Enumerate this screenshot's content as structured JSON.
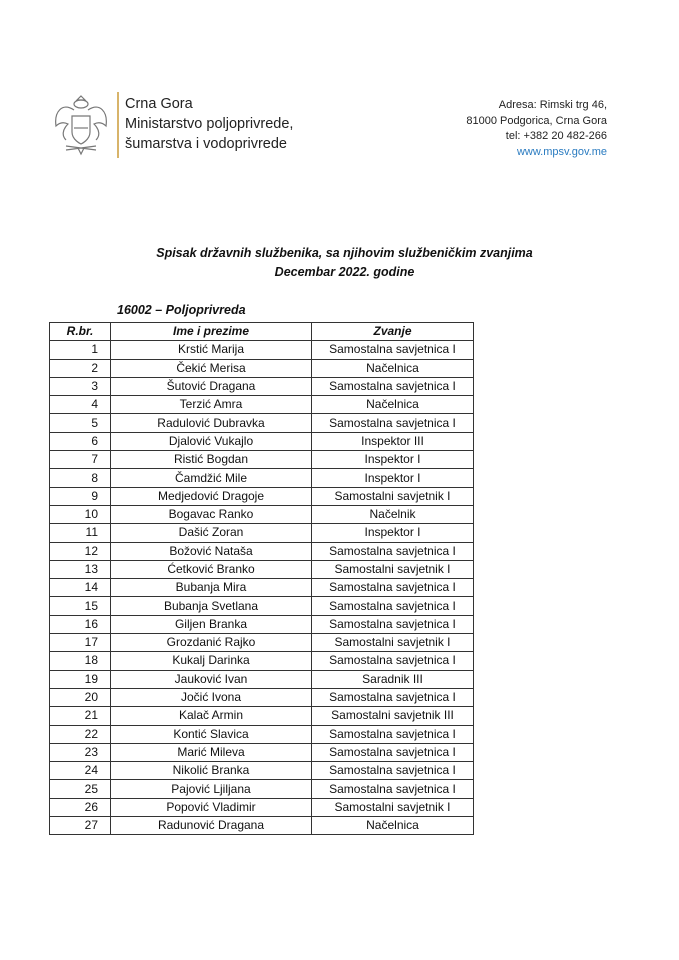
{
  "header": {
    "org_lines": [
      "Crna Gora",
      "Ministarstvo poljoprivrede,",
      "šumarstva i vodoprivrede"
    ],
    "address_lines": [
      "Adresa: Rimski trg 46,",
      "81000 Podgorica, Crna Gora",
      "tel: +382 20 482-266"
    ],
    "website": "www.mpsv.gov.me",
    "logo": "montenegro-coat-of-arms"
  },
  "title": {
    "line1": "Spisak državnih službenika, sa njihovim službeničkim zvanjima",
    "line2": "Decembar 2022. godine"
  },
  "section": "16002 – Poljoprivreda",
  "table": {
    "headers": [
      "R.br.",
      "Ime i prezime",
      "Zvanje"
    ],
    "rows": [
      [
        "1",
        "Krstić Marija",
        "Samostalna savjetnica I"
      ],
      [
        "2",
        "Čekić Merisa",
        "Načelnica"
      ],
      [
        "3",
        "Šutović Dragana",
        "Samostalna savjetnica I"
      ],
      [
        "4",
        "Terzić Amra",
        "Načelnica"
      ],
      [
        "5",
        "Radulović Dubravka",
        "Samostalna savjetnica I"
      ],
      [
        "6",
        "Djalović Vukajlo",
        "Inspektor III"
      ],
      [
        "7",
        "Ristić Bogdan",
        "Inspektor I"
      ],
      [
        "8",
        "Čamdžić Mile",
        "Inspektor I"
      ],
      [
        "9",
        "Medjedović Dragoje",
        "Samostalni savjetnik I"
      ],
      [
        "10",
        "Bogavac Ranko",
        "Načelnik"
      ],
      [
        "11",
        "Dašić Zoran",
        "Inspektor I"
      ],
      [
        "12",
        "Božović Nataša",
        "Samostalna savjetnica I"
      ],
      [
        "13",
        "Ćetković Branko",
        "Samostalni savjetnik I"
      ],
      [
        "14",
        "Bubanja Mira",
        "Samostalna savjetnica I"
      ],
      [
        "15",
        "Bubanja Svetlana",
        "Samostalna savjetnica I"
      ],
      [
        "16",
        "Giljen Branka",
        "Samostalna savjetnica I"
      ],
      [
        "17",
        "Grozdanić Rajko",
        "Samostalni savjetnik I"
      ],
      [
        "18",
        "Kukalj Darinka",
        "Samostalna savjetnica I"
      ],
      [
        "19",
        "Jauković Ivan",
        "Saradnik III"
      ],
      [
        "20",
        "Jočić Ivona",
        "Samostalna savjetnica I"
      ],
      [
        "21",
        "Kalač Armin",
        "Samostalni savjetnik III"
      ],
      [
        "22",
        "Kontić Slavica",
        "Samostalna savjetnica I"
      ],
      [
        "23",
        "Marić Mileva",
        "Samostalna savjetnica I"
      ],
      [
        "24",
        "Nikolić Branka",
        "Samostalna savjetnica I"
      ],
      [
        "25",
        "Pajović Ljiljana",
        "Samostalna savjetnica I"
      ],
      [
        "26",
        "Popović Vladimir",
        "Samostalni savjetnik I"
      ],
      [
        "27",
        "Radunović Dragana",
        "Načelnica"
      ]
    ]
  }
}
